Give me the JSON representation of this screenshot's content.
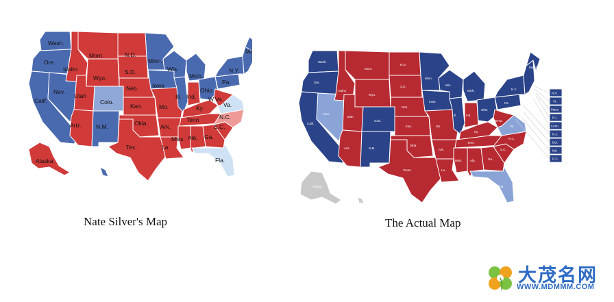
{
  "captions": {
    "left": "Nate Silver's Map",
    "right": "The Actual Map"
  },
  "colors": {
    "silver_rep": "#d03a39",
    "silver_dem": "#4a6ab0",
    "silver_lean_dem": "#90a8d6",
    "silver_lean_rep": "#ee9a97",
    "silver_tossup": "#cfe1f4",
    "actual_rep": "#b82a32",
    "actual_dem": "#2b4388",
    "actual_lean_dem": "#8aa4d8",
    "actual_grey": "#c8c8c8"
  },
  "silver_labels": {
    "wa": "Wash.",
    "or": "Ore.",
    "ca": "Calif.",
    "nv": "Nev.",
    "id": "Idaho",
    "mt": "Mont.",
    "wy": "Wyo.",
    "ut": "Utah",
    "co": "Colo.",
    "az": "Ariz.",
    "nm": "N.M.",
    "nd": "N.D.",
    "sd": "S.D.",
    "ne": "Neb.",
    "ks": "Kan.",
    "ok": "Okla.",
    "tx": "Tex.",
    "mn": "Minn.",
    "ia": "Iowa",
    "mo": "Mo.",
    "ar": "Ark.",
    "la": "La.",
    "wi": "Wis.",
    "il": "Ill.",
    "mi": "Mich.",
    "in": "Ind.",
    "oh": "Ohio",
    "ky": "Ky.",
    "tn": "Tenn",
    "ms": "Miss.",
    "al": "Ala.",
    "ga": "Ga.",
    "fl": "Fla.",
    "sc": "S.C.",
    "nc": "N.C.",
    "va": "Va.",
    "wv": "W.Va.",
    "pa": "Pa.",
    "ny": "N.Y.",
    "me": "Me.",
    "ak": "Alaska"
  },
  "actual_labels": {
    "wa": "Wash.",
    "or": "Ore.",
    "ca": "Calif.",
    "nv": "Nev.",
    "id": "Idaho",
    "mt": "Mont.",
    "wy": "Wyo.",
    "ut": "Utah",
    "co": "Colo.",
    "az": "Ariz.",
    "nm": "N.M.",
    "nd": "N.D.",
    "sd": "S.D.",
    "ne": "Neb.",
    "ks": "Kan.",
    "ok": "Okla.",
    "tx": "Texas",
    "mn": "Minn.",
    "ia": "Iowa",
    "mo": "Mo.",
    "ar": "Ark.",
    "la": "La.",
    "wi": "Wis.",
    "il": "Ill.",
    "mi": "Mich.",
    "in": "Ind.",
    "oh": "Ohio",
    "ky": "Ky.",
    "tn": "Tenn.",
    "ms": "Miss.",
    "al": "Ala.",
    "ga": "Ga.",
    "fl": "Fla.",
    "sc": "S.C.",
    "nc": "N.C.",
    "va": "Va.",
    "wv": "W.Va.",
    "pa": "Pa.",
    "ny": "N.Y.",
    "me": "Maine",
    "ak": "Alaska",
    "hi": "Hawaii"
  },
  "actual_sidebar": [
    "N.H.",
    "Vt.",
    "Mass.",
    "R.I.",
    "Conn.",
    "N.J.",
    "Del.",
    "Md.",
    "D.C."
  ],
  "watermark": {
    "brand": "大茂名网",
    "url": "WWW.MDMMM.COM"
  }
}
